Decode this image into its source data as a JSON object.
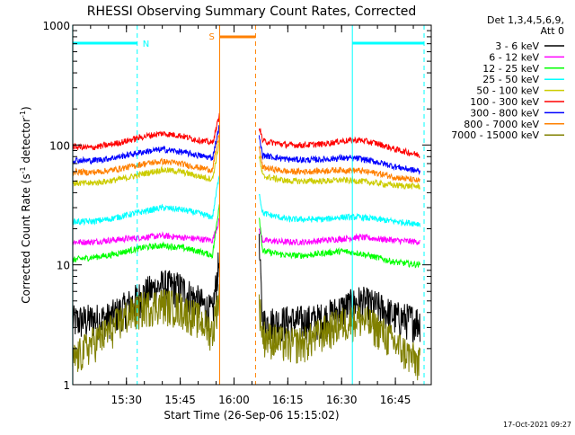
{
  "chart_data": {
    "type": "line",
    "title": "RHESSI Observing Summary Count Rates, Corrected",
    "xlabel": "Start Time (26-Sep-06 15:15:02)",
    "ylabel_main": "Corrected Count Rate (s",
    "ylabel_sup1": "-1",
    "ylabel_mid": " detector",
    "ylabel_sup2": "-1",
    "ylabel_end": ")",
    "y_scale": "log",
    "ylim": [
      1,
      1000
    ],
    "xlim": [
      "15:15",
      "16:55"
    ],
    "x_ticks": [
      "15:30",
      "15:45",
      "16:00",
      "16:15",
      "16:30",
      "16:45"
    ],
    "y_ticks": [
      "1",
      "10",
      "100",
      "1000"
    ],
    "legend_header": [
      "Det 1,3,4,5,6,9,",
      "Att 0"
    ],
    "legend_position": "right",
    "footer_timestamp": "17-Oct-2021 09:27",
    "flag_labels": {
      "night": "N",
      "saa": "S"
    },
    "flags": {
      "night": [
        [
          "15:15",
          "15:33"
        ],
        [
          "16:33",
          "16:53"
        ]
      ],
      "saa": [
        [
          "15:56",
          "16:06"
        ]
      ]
    },
    "gap": [
      "15:56",
      "16:07"
    ],
    "series": [
      {
        "name": "3 - 6 keV",
        "color": "#000000",
        "values": [
          [
            "15:15",
            3.4
          ],
          [
            "15:20",
            3.5
          ],
          [
            "15:25",
            3.6
          ],
          [
            "15:30",
            4.5
          ],
          [
            "15:35",
            5.8
          ],
          [
            "15:40",
            6.8
          ],
          [
            "15:45",
            6.5
          ],
          [
            "15:50",
            5.0
          ],
          [
            "15:54",
            4.0
          ],
          [
            "15:56",
            12
          ],
          [
            "16:07",
            14
          ],
          [
            "16:08",
            3.3
          ],
          [
            "16:15",
            3.4
          ],
          [
            "16:20",
            3.4
          ],
          [
            "16:25",
            3.6
          ],
          [
            "16:30",
            4.3
          ],
          [
            "16:35",
            5.0
          ],
          [
            "16:40",
            4.5
          ],
          [
            "16:45",
            3.7
          ],
          [
            "16:52",
            3.4
          ]
        ]
      },
      {
        "name": "6 - 12 keV",
        "color": "#ff00ff",
        "values": [
          [
            "15:15",
            15.5
          ],
          [
            "15:20",
            15.5
          ],
          [
            "15:25",
            16
          ],
          [
            "15:30",
            16.5
          ],
          [
            "15:35",
            17
          ],
          [
            "15:40",
            17.5
          ],
          [
            "15:45",
            17
          ],
          [
            "15:50",
            16.5
          ],
          [
            "15:54",
            16
          ],
          [
            "15:56",
            24
          ],
          [
            "16:07",
            20
          ],
          [
            "16:08",
            16
          ],
          [
            "16:15",
            15.5
          ],
          [
            "16:20",
            15.5
          ],
          [
            "16:25",
            16
          ],
          [
            "16:30",
            16.5
          ],
          [
            "16:35",
            17
          ],
          [
            "16:40",
            16.5
          ],
          [
            "16:45",
            16
          ],
          [
            "16:52",
            15.5
          ]
        ]
      },
      {
        "name": "12 - 25 keV",
        "color": "#00ff00",
        "values": [
          [
            "15:15",
            11
          ],
          [
            "15:20",
            11.5
          ],
          [
            "15:25",
            12
          ],
          [
            "15:30",
            13
          ],
          [
            "15:35",
            14
          ],
          [
            "15:40",
            14.5
          ],
          [
            "15:45",
            14
          ],
          [
            "15:50",
            13
          ],
          [
            "15:54",
            12
          ],
          [
            "15:56",
            34
          ],
          [
            "16:07",
            26
          ],
          [
            "16:08",
            13
          ],
          [
            "16:15",
            12
          ],
          [
            "16:20",
            12
          ],
          [
            "16:25",
            12.5
          ],
          [
            "16:30",
            13
          ],
          [
            "16:35",
            12.5
          ],
          [
            "16:40",
            11.5
          ],
          [
            "16:45",
            10.5
          ],
          [
            "16:52",
            10
          ]
        ]
      },
      {
        "name": "25 - 50 keV",
        "color": "#00ffff",
        "values": [
          [
            "15:15",
            23
          ],
          [
            "15:20",
            23
          ],
          [
            "15:25",
            24
          ],
          [
            "15:30",
            26
          ],
          [
            "15:35",
            28
          ],
          [
            "15:40",
            30
          ],
          [
            "15:45",
            29
          ],
          [
            "15:50",
            27
          ],
          [
            "15:54",
            25
          ],
          [
            "15:56",
            60
          ],
          [
            "16:07",
            40
          ],
          [
            "16:08",
            27
          ],
          [
            "16:15",
            24
          ],
          [
            "16:20",
            24
          ],
          [
            "16:25",
            24
          ],
          [
            "16:30",
            25
          ],
          [
            "16:35",
            25
          ],
          [
            "16:40",
            24
          ],
          [
            "16:45",
            23
          ],
          [
            "16:52",
            22
          ]
        ]
      },
      {
        "name": "50 - 100 keV",
        "color": "#cccc00",
        "values": [
          [
            "15:15",
            48
          ],
          [
            "15:20",
            48
          ],
          [
            "15:25",
            50
          ],
          [
            "15:30",
            53
          ],
          [
            "15:35",
            58
          ],
          [
            "15:40",
            62
          ],
          [
            "15:45",
            60
          ],
          [
            "15:50",
            55
          ],
          [
            "15:54",
            52
          ],
          [
            "15:56",
            110
          ],
          [
            "16:07",
            80
          ],
          [
            "16:08",
            55
          ],
          [
            "16:15",
            50
          ],
          [
            "16:20",
            50
          ],
          [
            "16:25",
            50
          ],
          [
            "16:30",
            51
          ],
          [
            "16:35",
            50
          ],
          [
            "16:40",
            48
          ],
          [
            "16:45",
            46
          ],
          [
            "16:52",
            45
          ]
        ]
      },
      {
        "name": "100 - 300 keV",
        "color": "#ff0000",
        "values": [
          [
            "15:15",
            97
          ],
          [
            "15:20",
            95
          ],
          [
            "15:25",
            100
          ],
          [
            "15:30",
            108
          ],
          [
            "15:35",
            118
          ],
          [
            "15:40",
            125
          ],
          [
            "15:45",
            120
          ],
          [
            "15:50",
            110
          ],
          [
            "15:54",
            104
          ],
          [
            "15:56",
            180
          ],
          [
            "16:07",
            145
          ],
          [
            "16:08",
            108
          ],
          [
            "16:15",
            100
          ],
          [
            "16:20",
            100
          ],
          [
            "16:25",
            102
          ],
          [
            "16:30",
            108
          ],
          [
            "16:35",
            110
          ],
          [
            "16:40",
            103
          ],
          [
            "16:45",
            92
          ],
          [
            "16:52",
            82
          ]
        ]
      },
      {
        "name": "300 - 800 keV",
        "color": "#0000ff",
        "values": [
          [
            "15:15",
            75
          ],
          [
            "15:20",
            74
          ],
          [
            "15:25",
            77
          ],
          [
            "15:30",
            82
          ],
          [
            "15:35",
            88
          ],
          [
            "15:40",
            92
          ],
          [
            "15:45",
            88
          ],
          [
            "15:50",
            82
          ],
          [
            "15:54",
            78
          ],
          [
            "15:56",
            150
          ],
          [
            "16:07",
            115
          ],
          [
            "16:08",
            82
          ],
          [
            "16:15",
            76
          ],
          [
            "16:20",
            75
          ],
          [
            "16:25",
            76
          ],
          [
            "16:30",
            78
          ],
          [
            "16:35",
            77
          ],
          [
            "16:40",
            72
          ],
          [
            "16:45",
            66
          ],
          [
            "16:52",
            60
          ]
        ]
      },
      {
        "name": "800 - 7000 keV",
        "color": "#ff8000",
        "values": [
          [
            "15:15",
            60
          ],
          [
            "15:20",
            59
          ],
          [
            "15:25",
            61
          ],
          [
            "15:30",
            65
          ],
          [
            "15:35",
            70
          ],
          [
            "15:40",
            73
          ],
          [
            "15:45",
            70
          ],
          [
            "15:50",
            65
          ],
          [
            "15:54",
            62
          ],
          [
            "15:56",
            130
          ],
          [
            "16:07",
            95
          ],
          [
            "16:08",
            65
          ],
          [
            "16:15",
            60
          ],
          [
            "16:20",
            60
          ],
          [
            "16:25",
            61
          ],
          [
            "16:30",
            62
          ],
          [
            "16:35",
            61
          ],
          [
            "16:40",
            58
          ],
          [
            "16:45",
            54
          ],
          [
            "16:52",
            50
          ]
        ]
      },
      {
        "name": "7000 - 15000 keV",
        "color": "#808000",
        "values": [
          [
            "15:15",
            1.6
          ],
          [
            "15:20",
            2.2
          ],
          [
            "15:25",
            2.8
          ],
          [
            "15:30",
            3.8
          ],
          [
            "15:35",
            4.5
          ],
          [
            "15:40",
            4.8
          ],
          [
            "15:45",
            4.4
          ],
          [
            "15:50",
            3.6
          ],
          [
            "15:54",
            2.8
          ],
          [
            "15:56",
            6
          ],
          [
            "16:07",
            5
          ],
          [
            "16:08",
            2.6
          ],
          [
            "16:15",
            2.2
          ],
          [
            "16:20",
            2.3
          ],
          [
            "16:25",
            2.8
          ],
          [
            "16:30",
            3.3
          ],
          [
            "16:35",
            3.6
          ],
          [
            "16:40",
            3.0
          ],
          [
            "16:45",
            2.2
          ],
          [
            "16:52",
            1.5
          ]
        ]
      }
    ]
  }
}
